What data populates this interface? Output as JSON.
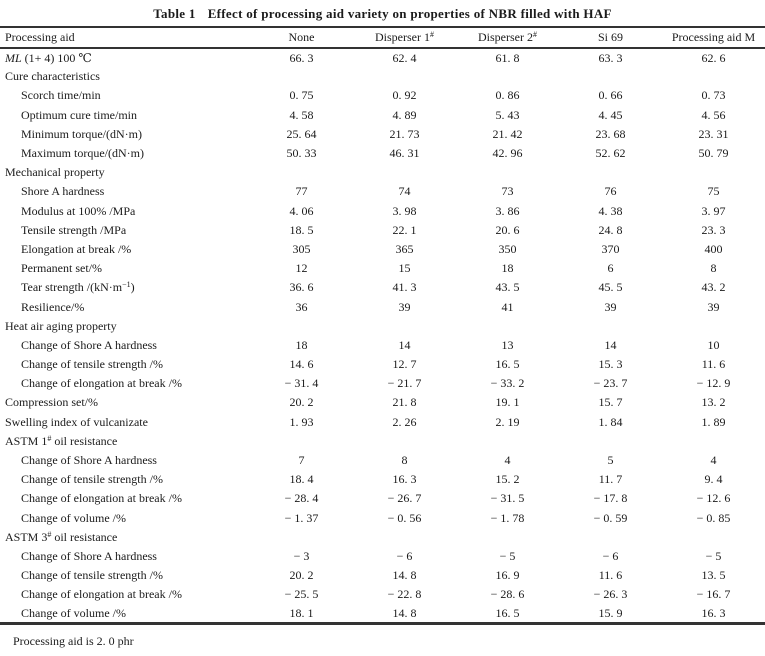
{
  "page": {
    "title_label": "Table 1",
    "title_text": "Effect of processing aid variety on properties of NBR filled with HAF",
    "footnote": "Processing aid is 2. 0 phr"
  },
  "table": {
    "corner_label": "Processing aid",
    "columns": [
      [
        {
          "t": "None"
        }
      ],
      [
        {
          "t": "Disperser 1"
        },
        {
          "t": "#",
          "sup": true
        }
      ],
      [
        {
          "t": "Disperser 2"
        },
        {
          "t": "#",
          "sup": true
        }
      ],
      [
        {
          "t": "Si 69"
        }
      ],
      [
        {
          "t": "Processing aid M"
        }
      ]
    ],
    "rows": [
      {
        "label": [
          {
            "t": "ML",
            "i": true
          },
          {
            "t": " (1+ 4) 100 ℃"
          }
        ],
        "indent": false,
        "values": [
          "66. 3",
          "62. 4",
          "61. 8",
          "63. 3",
          "62. 6"
        ]
      },
      {
        "label": [
          {
            "t": "Cure characteristics"
          }
        ],
        "section": true
      },
      {
        "label": [
          {
            "t": "Scorch time/min"
          }
        ],
        "indent": true,
        "values": [
          "0. 75",
          "0. 92",
          "0. 86",
          "0. 66",
          "0. 73"
        ]
      },
      {
        "label": [
          {
            "t": "Optimum cure time/min"
          }
        ],
        "indent": true,
        "values": [
          "4. 58",
          "4. 89",
          "5. 43",
          "4. 45",
          "4. 56"
        ]
      },
      {
        "label": [
          {
            "t": "Minimum torque/(dN·m)"
          }
        ],
        "indent": true,
        "values": [
          "25. 64",
          "21. 73",
          "21. 42",
          "23. 68",
          "23. 31"
        ]
      },
      {
        "label": [
          {
            "t": "Maximum torque/(dN·m)"
          }
        ],
        "indent": true,
        "values": [
          "50. 33",
          "46. 31",
          "42. 96",
          "52. 62",
          "50. 79"
        ]
      },
      {
        "label": [
          {
            "t": "Mechanical property"
          }
        ],
        "section": true
      },
      {
        "label": [
          {
            "t": "Shore A hardness"
          }
        ],
        "indent": true,
        "values": [
          "77",
          "74",
          "73",
          "76",
          "75"
        ]
      },
      {
        "label": [
          {
            "t": "Modulus at 100% /MPa"
          }
        ],
        "indent": true,
        "values": [
          "4. 06",
          "3. 98",
          "3. 86",
          "4. 38",
          "3. 97"
        ]
      },
      {
        "label": [
          {
            "t": "Tensile strength /MPa"
          }
        ],
        "indent": true,
        "values": [
          "18. 5",
          "22. 1",
          "20. 6",
          "24. 8",
          "23. 3"
        ]
      },
      {
        "label": [
          {
            "t": "Elongation at break /%"
          }
        ],
        "indent": true,
        "values": [
          "305",
          "365",
          "350",
          "370",
          "400"
        ]
      },
      {
        "label": [
          {
            "t": "Permanent set/%"
          }
        ],
        "indent": true,
        "values": [
          "12",
          "15",
          "18",
          "6",
          "8"
        ]
      },
      {
        "label": [
          {
            "t": "Tear strength /(kN·m"
          },
          {
            "t": "−1",
            "sup": true
          },
          {
            "t": ")"
          }
        ],
        "indent": true,
        "values": [
          "36. 6",
          "41. 3",
          "43. 5",
          "45. 5",
          "43. 2"
        ]
      },
      {
        "label": [
          {
            "t": "Resilience/%"
          }
        ],
        "indent": true,
        "values": [
          "36",
          "39",
          "41",
          "39",
          "39"
        ]
      },
      {
        "label": [
          {
            "t": "Heat air aging property"
          }
        ],
        "section": true
      },
      {
        "label": [
          {
            "t": "Change of Shore A hardness"
          }
        ],
        "indent": true,
        "values": [
          "18",
          "14",
          "13",
          "14",
          "10"
        ]
      },
      {
        "label": [
          {
            "t": "Change of tensile strength /%"
          }
        ],
        "indent": true,
        "values": [
          "14. 6",
          "12. 7",
          "16. 5",
          "15. 3",
          "11. 6"
        ]
      },
      {
        "label": [
          {
            "t": "Change of elongation at break /%"
          }
        ],
        "indent": true,
        "values": [
          "− 31. 4",
          "− 21. 7",
          "− 33. 2",
          "− 23. 7",
          "− 12. 9"
        ]
      },
      {
        "label": [
          {
            "t": "Compression set/%"
          }
        ],
        "indent": false,
        "values": [
          "20. 2",
          "21. 8",
          "19. 1",
          "15. 7",
          "13. 2"
        ]
      },
      {
        "label": [
          {
            "t": "Swelling index of vulcanizate"
          }
        ],
        "indent": false,
        "values": [
          "1. 93",
          "2. 26",
          "2. 19",
          "1. 84",
          "1. 89"
        ]
      },
      {
        "label": [
          {
            "t": "ASTM 1"
          },
          {
            "t": "#",
            "sup": true
          },
          {
            "t": " oil resistance"
          }
        ],
        "section": true
      },
      {
        "label": [
          {
            "t": "Change of Shore A hardness"
          }
        ],
        "indent": true,
        "values": [
          "7",
          "8",
          "4",
          "5",
          "4"
        ]
      },
      {
        "label": [
          {
            "t": "Change of tensile strength /%"
          }
        ],
        "indent": true,
        "values": [
          "18. 4",
          "16. 3",
          "15. 2",
          "11. 7",
          "9. 4"
        ]
      },
      {
        "label": [
          {
            "t": "Change of elongation at break /%"
          }
        ],
        "indent": true,
        "values": [
          "− 28. 4",
          "− 26. 7",
          "− 31. 5",
          "− 17. 8",
          "− 12. 6"
        ]
      },
      {
        "label": [
          {
            "t": "Change of volume /%"
          }
        ],
        "indent": true,
        "values": [
          "− 1. 37",
          "− 0. 56",
          "− 1. 78",
          "− 0. 59",
          "− 0. 85"
        ]
      },
      {
        "label": [
          {
            "t": "ASTM 3"
          },
          {
            "t": "#",
            "sup": true
          },
          {
            "t": " oil resistance"
          }
        ],
        "section": true
      },
      {
        "label": [
          {
            "t": "Change of Shore A hardness"
          }
        ],
        "indent": true,
        "values": [
          "− 3",
          "− 6",
          "− 5",
          "− 6",
          "− 5"
        ]
      },
      {
        "label": [
          {
            "t": "Change of tensile strength /%"
          }
        ],
        "indent": true,
        "values": [
          "20. 2",
          "14. 8",
          "16. 9",
          "11. 6",
          "13. 5"
        ]
      },
      {
        "label": [
          {
            "t": "Change of elongation at break /%"
          }
        ],
        "indent": true,
        "values": [
          "− 25. 5",
          "− 22. 8",
          "− 28. 6",
          "− 26. 3",
          "− 16. 7"
        ]
      },
      {
        "label": [
          {
            "t": "Change of volume /%"
          }
        ],
        "indent": true,
        "values": [
          "18. 1",
          "14. 8",
          "16. 5",
          "15. 9",
          "16. 3"
        ]
      }
    ]
  }
}
